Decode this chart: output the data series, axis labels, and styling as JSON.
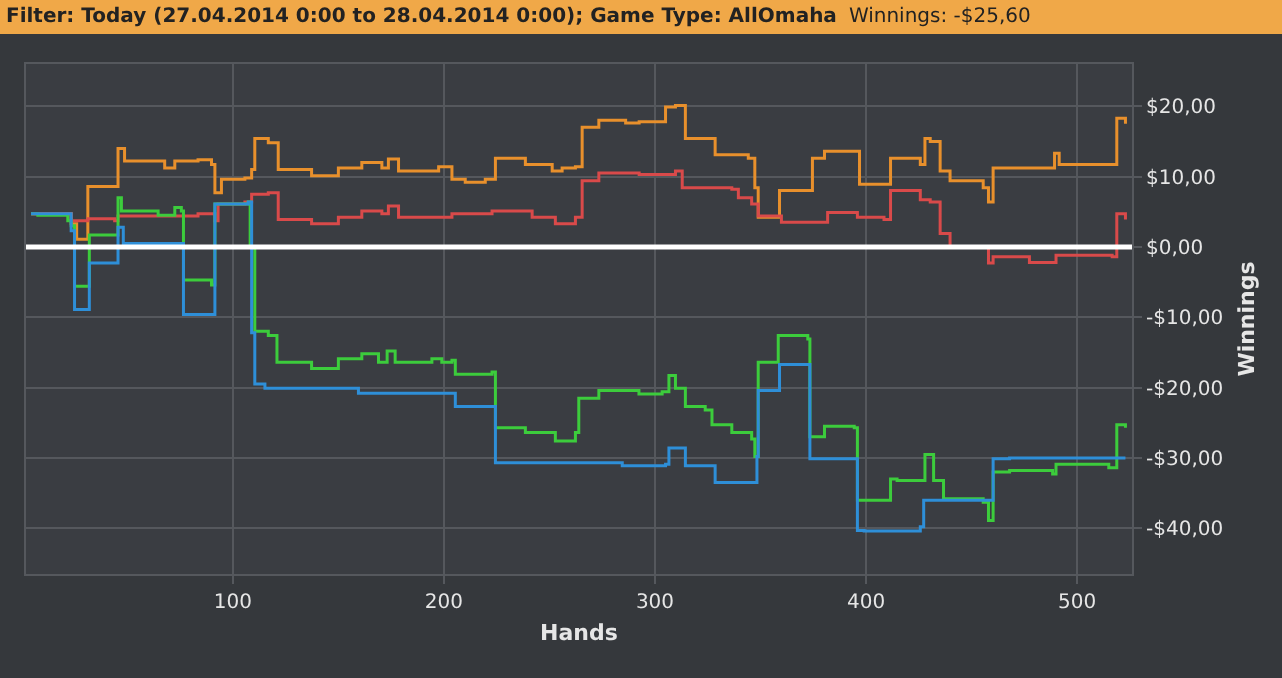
{
  "chart_data": {
    "type": "step",
    "title": "Filter: Today (27.04.2014 0:00 to 28.04.2014 0:00); Game Type: AllOmaha",
    "subtitle": "Winnings: -$25,60",
    "xlabel": "Hands",
    "ylabel": "Winnings",
    "xlim": [
      2,
      526
    ],
    "xticks": [
      100,
      200,
      300,
      400,
      500
    ],
    "ylim": [
      -46.5,
      26
    ],
    "yticks": [
      {
        "value": 20,
        "label": "$20,00"
      },
      {
        "value": 10,
        "label": "$10,00"
      },
      {
        "value": 0,
        "label": "$0,00"
      },
      {
        "value": -10,
        "label": "-$10,00"
      },
      {
        "value": -20,
        "label": "-$20,00"
      },
      {
        "value": -30,
        "label": "-$30,00"
      },
      {
        "value": -40,
        "label": "-$40,00"
      }
    ],
    "grid": true,
    "ref_lines": [
      {
        "axis": "y",
        "value": 0,
        "color": "#ffffff"
      }
    ],
    "series": [
      {
        "color": "#e8902c",
        "x": [
          4.4,
          23.4,
          26,
          31.3,
          44,
          45.6,
          48.7,
          67.7,
          72.5,
          83.5,
          89.9,
          91.5,
          94.6,
          105.7,
          108.9,
          110.4,
          116.8,
          121.5,
          137.3,
          150,
          161.1,
          170.6,
          173.7,
          178.5,
          197.5,
          203.8,
          210.1,
          219.6,
          224.4,
          238.6,
          251.3,
          256,
          262.3,
          265.5,
          273.4,
          286.1,
          292.5,
          305,
          309.7,
          314.4,
          327,
          328.5,
          344.2,
          347.3,
          348.9,
          357.7,
          359,
          372.4,
          374.6,
          380.3,
          394.4,
          396.9,
          410,
          411.6,
          425.7,
          427.9,
          430.4,
          435.1,
          439.8,
          455.5,
          458,
          460.2,
          480.6,
          489.3,
          491.5,
          516.6,
          518.8,
          522.9
        ],
        "values": [
          4.7,
          3.3,
          1.1,
          8.6,
          8.6,
          14,
          12.2,
          11.2,
          12.2,
          12.4,
          11.7,
          7.7,
          9.6,
          9.8,
          11,
          15.4,
          14.8,
          11,
          10.1,
          11.2,
          12,
          11.2,
          12.5,
          10.8,
          11.4,
          9.6,
          9.2,
          9.6,
          12.6,
          11.7,
          10.8,
          11.2,
          11.4,
          17,
          18,
          17.6,
          17.8,
          19.9,
          20.1,
          15.4,
          15.4,
          13.1,
          12.6,
          8.4,
          4.2,
          4.2,
          8,
          8,
          12.6,
          13.6,
          13.6,
          8.9,
          8.9,
          12.6,
          11.7,
          15.4,
          15,
          10.8,
          9.4,
          8.4,
          6.4,
          11.2,
          11.2,
          13.3,
          11.7,
          11.7,
          18.3,
          17.5
        ]
      },
      {
        "color": "#d94a4a",
        "x": [
          4.4,
          23.4,
          31.3,
          44,
          45.6,
          64.6,
          83.5,
          91.5,
          93,
          105.7,
          108.9,
          116.8,
          121.5,
          137.3,
          150,
          161.1,
          170.6,
          173.7,
          178.5,
          203.8,
          222.8,
          241.8,
          252.8,
          262.3,
          265.5,
          273.4,
          292.5,
          309.7,
          312.9,
          336.4,
          339.5,
          345.8,
          348.9,
          359.9,
          375.5,
          381.8,
          395.9,
          408.5,
          411.6,
          425.7,
          430.4,
          435.1,
          439.8,
          455.5,
          458,
          460.2,
          477.4,
          488.4,
          490,
          516.6,
          518.8,
          522.9
        ],
        "values": [
          4.7,
          3.7,
          4,
          3.7,
          4.4,
          4.4,
          4.7,
          3.7,
          6.1,
          6.4,
          7.5,
          7.7,
          3.9,
          3.3,
          4.2,
          5.1,
          4.7,
          5.8,
          4.2,
          4.7,
          5.1,
          4.2,
          3.3,
          4.2,
          9.4,
          10.5,
          10.3,
          10.8,
          8.4,
          8.2,
          7,
          6.1,
          4.4,
          3.5,
          3.5,
          4.9,
          4.2,
          3.9,
          8,
          6.7,
          6.4,
          1.9,
          0,
          0,
          -2.3,
          -1.4,
          -2.2,
          -2.2,
          -1.2,
          -1.4,
          4.7,
          3.9
        ]
      },
      {
        "color": "#3ccc3c",
        "x": [
          4.4,
          7.6,
          21.8,
          23.4,
          25,
          30.4,
          32,
          44,
          45.6,
          47.2,
          64.6,
          72.5,
          75.6,
          76.6,
          89.9,
          91.5,
          107.3,
          108.2,
          110.4,
          116.8,
          120.9,
          137.3,
          150,
          161.1,
          169,
          173.1,
          176.9,
          194.3,
          199,
          203.8,
          205.4,
          222.8,
          224.4,
          238.6,
          252.8,
          262.3,
          263.9,
          273.4,
          292.4,
          303.4,
          306.6,
          309.7,
          314.4,
          323.8,
          327,
          336.4,
          345.8,
          347.3,
          348.9,
          357.7,
          358.4,
          372.4,
          373.4,
          380.3,
          394.4,
          395.9,
          410,
          411.6,
          414.7,
          425.7,
          427.9,
          432,
          436.7,
          455.5,
          458,
          460.2,
          468,
          488.4,
          490,
          515,
          518.8,
          522.9
        ],
        "values": [
          4.7,
          4.5,
          3.7,
          3,
          -5.6,
          -5.6,
          1.7,
          1.7,
          7,
          5.1,
          4.5,
          5.6,
          5.1,
          -4.7,
          -5.4,
          6.1,
          6.4,
          0,
          -12,
          -12.6,
          -16.4,
          -17.3,
          -15.9,
          -15.2,
          -16.4,
          -14.8,
          -16.4,
          -15.9,
          -16.4,
          -16.1,
          -18.1,
          -17.8,
          -25.7,
          -26.4,
          -27.6,
          -26.4,
          -21.5,
          -20.4,
          -20.9,
          -20.6,
          -18.3,
          -20.1,
          -22.7,
          -23.2,
          -25.3,
          -26.4,
          -27.3,
          -29.8,
          -16.4,
          -16.4,
          -12.6,
          -13.1,
          -27,
          -25.5,
          -25.7,
          -36,
          -36,
          -33,
          -33.2,
          -33.2,
          -29.5,
          -33.2,
          -35.8,
          -36.3,
          -38.9,
          -32,
          -31.8,
          -32.3,
          -30.9,
          -31.4,
          -25.3,
          -25.7
        ]
      },
      {
        "color": "#2e8fd8",
        "x": [
          4.4,
          23.4,
          25,
          30.4,
          32,
          44,
          45.6,
          48.1,
          75.6,
          76.6,
          89.9,
          91.5,
          107.3,
          108.9,
          110.4,
          115.2,
          157.9,
          159.5,
          203.8,
          205.4,
          222.8,
          224.4,
          282.9,
          284.5,
          305,
          306.6,
          312.9,
          314.4,
          327,
          328.5,
          347.3,
          348.3,
          348.9,
          358.4,
          359,
          372.4,
          373.4,
          394.4,
          395.9,
          399.1,
          425.7,
          427.3,
          458.6,
          460.2,
          468,
          522.9
        ],
        "values": [
          4.7,
          2.3,
          -8.9,
          -8.9,
          -2.3,
          -2.3,
          2.8,
          0.5,
          0.5,
          -9.6,
          -9.6,
          6.1,
          6.4,
          -12.2,
          -19.5,
          -20.1,
          -20.1,
          -20.8,
          -20.8,
          -22.7,
          -22.7,
          -30.7,
          -30.7,
          -31.1,
          -30.9,
          -28.6,
          -28.6,
          -31.1,
          -31.1,
          -33.5,
          -33.5,
          -29.8,
          -20.4,
          -20.4,
          -16.7,
          -16.7,
          -30.1,
          -30.1,
          -40.3,
          -40.4,
          -39.8,
          -36,
          -36,
          -30.1,
          -30,
          -30
        ]
      }
    ]
  }
}
